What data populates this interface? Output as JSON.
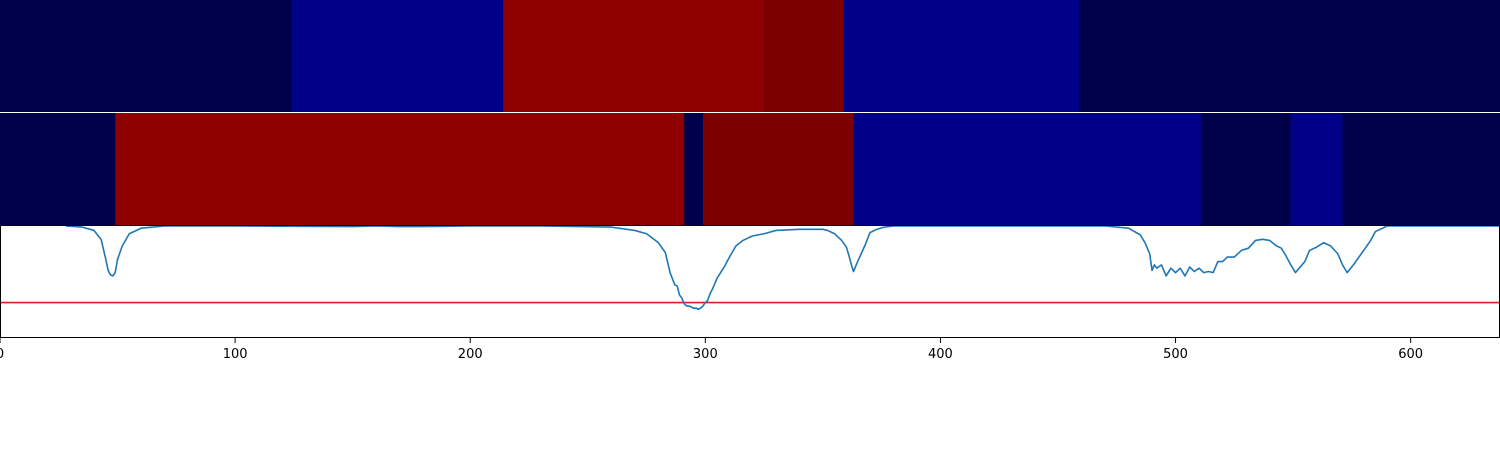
{
  "chart_data": {
    "type": "heatmap",
    "xlim": [
      0,
      638
    ],
    "x_ticks": [
      {
        "value": 0,
        "label": "0"
      },
      {
        "value": 100,
        "label": "100"
      },
      {
        "value": 200,
        "label": "200"
      },
      {
        "value": 300,
        "label": "300"
      },
      {
        "value": 400,
        "label": "400"
      },
      {
        "value": 500,
        "label": "500"
      },
      {
        "value": 600,
        "label": "600"
      }
    ],
    "segment_tracks": [
      {
        "segments": [
          {
            "start": 0,
            "end": 124,
            "color": "#00004a"
          },
          {
            "start": 124,
            "end": 214,
            "color": "#000089"
          },
          {
            "start": 214,
            "end": 325,
            "color": "#8f0000"
          },
          {
            "start": 325,
            "end": 359,
            "color": "#7c0000"
          },
          {
            "start": 359,
            "end": 459,
            "color": "#000089"
          },
          {
            "start": 459,
            "end": 638,
            "color": "#00004a"
          }
        ]
      },
      {
        "segments": [
          {
            "start": 0,
            "end": 49,
            "color": "#00004a"
          },
          {
            "start": 49,
            "end": 291,
            "color": "#8f0000"
          },
          {
            "start": 291,
            "end": 299,
            "color": "#00004a"
          },
          {
            "start": 299,
            "end": 363,
            "color": "#7c0000"
          },
          {
            "start": 363,
            "end": 511,
            "color": "#000089"
          },
          {
            "start": 511,
            "end": 549,
            "color": "#00004a"
          },
          {
            "start": 549,
            "end": 571,
            "color": "#000089"
          },
          {
            "start": 571,
            "end": 638,
            "color": "#00004a"
          }
        ]
      }
    ],
    "line_series": {
      "color": "#1f77b4",
      "ylim": [
        0,
        1
      ],
      "threshold": {
        "value": 0.31,
        "color": "#e41a1c"
      },
      "x": [
        28,
        35,
        40,
        43,
        45,
        46,
        47,
        48,
        49,
        50,
        52,
        55,
        60,
        70,
        100,
        150,
        160,
        170,
        180,
        200,
        230,
        260,
        270,
        275,
        280,
        283,
        285,
        287,
        288,
        289,
        290,
        291,
        292,
        293,
        294,
        295,
        296,
        297,
        298,
        299,
        300,
        301,
        302,
        303,
        305,
        308,
        310,
        313,
        316,
        320,
        325,
        330,
        340,
        350,
        352,
        355,
        358,
        360,
        361,
        362,
        363,
        365,
        368,
        370,
        373,
        376,
        380,
        390,
        410,
        440,
        470,
        480,
        485,
        487,
        489,
        490,
        491,
        492,
        494,
        496,
        498,
        500,
        502,
        504,
        506,
        508,
        510,
        512,
        514,
        516,
        518,
        520,
        522,
        525,
        528,
        531,
        534,
        537,
        540,
        543,
        545,
        547,
        549,
        551,
        553,
        555,
        557,
        560,
        563,
        566,
        569,
        571,
        573,
        576,
        580,
        583,
        585,
        590,
        638
      ],
      "y": [
        1.0,
        0.99,
        0.96,
        0.88,
        0.7,
        0.6,
        0.56,
        0.55,
        0.58,
        0.7,
        0.82,
        0.93,
        0.98,
        1.0,
        1.0,
        0.995,
        1.0,
        0.995,
        0.995,
        1.0,
        1.0,
        0.99,
        0.96,
        0.93,
        0.85,
        0.76,
        0.58,
        0.47,
        0.46,
        0.38,
        0.35,
        0.3,
        0.28,
        0.28,
        0.27,
        0.26,
        0.26,
        0.25,
        0.26,
        0.28,
        0.31,
        0.33,
        0.39,
        0.43,
        0.53,
        0.63,
        0.71,
        0.82,
        0.87,
        0.91,
        0.93,
        0.96,
        0.97,
        0.97,
        0.96,
        0.93,
        0.87,
        0.81,
        0.74,
        0.66,
        0.59,
        0.69,
        0.83,
        0.94,
        0.97,
        0.99,
        1.0,
        1.0,
        1.0,
        1.0,
        1.0,
        0.98,
        0.92,
        0.85,
        0.75,
        0.6,
        0.65,
        0.62,
        0.65,
        0.55,
        0.62,
        0.58,
        0.62,
        0.55,
        0.63,
        0.59,
        0.62,
        0.58,
        0.59,
        0.58,
        0.68,
        0.68,
        0.72,
        0.72,
        0.78,
        0.8,
        0.87,
        0.88,
        0.87,
        0.82,
        0.8,
        0.73,
        0.65,
        0.58,
        0.63,
        0.68,
        0.78,
        0.81,
        0.85,
        0.82,
        0.75,
        0.65,
        0.58,
        0.66,
        0.78,
        0.87,
        0.95,
        1.0,
        1.0
      ]
    }
  }
}
